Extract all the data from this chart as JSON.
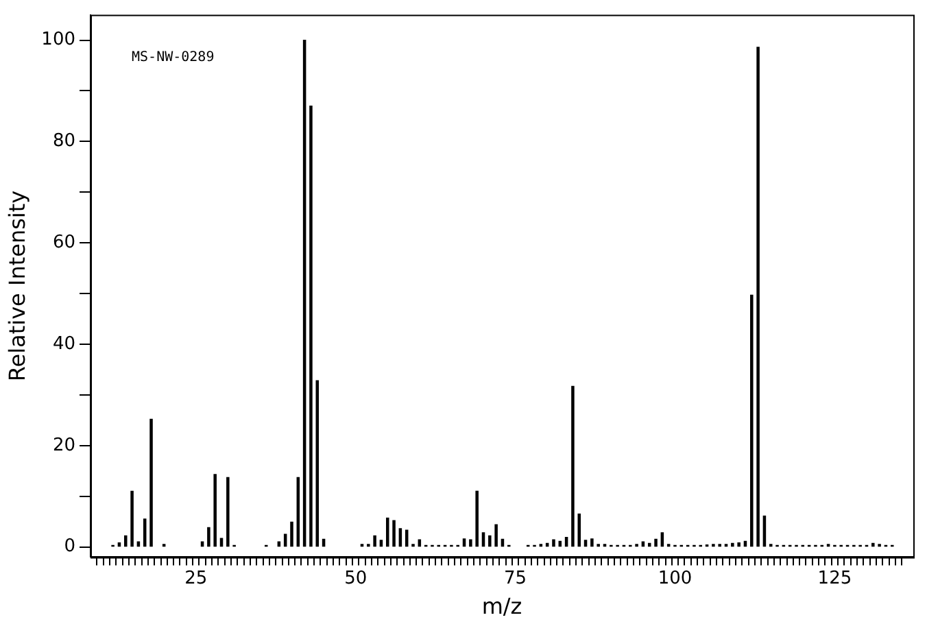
{
  "chart_data": {
    "type": "bar",
    "xlabel": "m/z",
    "ylabel": "Relative Intensity",
    "annotations": [
      "MS-NW-0289"
    ],
    "x": [
      12,
      13,
      14,
      15,
      16,
      17,
      18,
      20,
      26,
      27,
      28,
      29,
      30,
      31,
      36,
      38,
      39,
      40,
      41,
      42,
      43,
      44,
      45,
      51,
      52,
      53,
      54,
      55,
      56,
      57,
      58,
      59,
      60,
      61,
      62,
      63,
      64,
      65,
      66,
      67,
      68,
      69,
      70,
      71,
      72,
      73,
      74,
      77,
      78,
      79,
      80,
      81,
      82,
      83,
      84,
      85,
      86,
      87,
      88,
      89,
      90,
      91,
      92,
      93,
      94,
      95,
      96,
      97,
      98,
      99,
      100,
      101,
      102,
      103,
      104,
      105,
      106,
      107,
      108,
      109,
      110,
      111,
      112,
      113,
      114,
      115,
      116,
      117,
      118,
      119,
      120,
      121,
      122,
      123,
      124,
      125,
      126,
      127,
      128,
      129,
      130,
      131,
      132,
      133,
      134
    ],
    "values": [
      0.3,
      0.8,
      2.2,
      11,
      1,
      5.5,
      25.2,
      0.5,
      1,
      3.8,
      14.3,
      1.7,
      13.7,
      0.3,
      0.3,
      1,
      2.5,
      4.9,
      13.7,
      100,
      87,
      32.8,
      1.5,
      0.5,
      0.5,
      2.2,
      1.3,
      5.7,
      5.2,
      3.6,
      3.3,
      0.5,
      1.4,
      0.3,
      0.3,
      0.3,
      0.3,
      0.3,
      0.3,
      1.6,
      1.4,
      11,
      2.8,
      2.2,
      4.4,
      1.5,
      0.3,
      0.3,
      0.3,
      0.5,
      0.7,
      1.4,
      1.1,
      1.9,
      31.7,
      6.5,
      1.3,
      1.6,
      0.5,
      0.5,
      0.3,
      0.3,
      0.3,
      0.3,
      0.5,
      1,
      0.7,
      1.5,
      2.8,
      0.5,
      0.3,
      0.3,
      0.3,
      0.3,
      0.3,
      0.4,
      0.5,
      0.5,
      0.5,
      0.7,
      0.8,
      1.1,
      49.7,
      98.6,
      6.1,
      0.5,
      0.3,
      0.3,
      0.3,
      0.3,
      0.3,
      0.3,
      0.3,
      0.3,
      0.5,
      0.3,
      0.3,
      0.3,
      0.3,
      0.3,
      0.3,
      0.7,
      0.5,
      0.3,
      0.3
    ],
    "color": "#000000",
    "xlim": [
      8.5,
      137.3
    ],
    "xticks": [
      {
        "value": 10,
        "label": null
      },
      {
        "value": 11,
        "label": null
      },
      {
        "value": 12,
        "label": null
      },
      {
        "value": 13,
        "label": null
      },
      {
        "value": 14,
        "label": null
      },
      {
        "value": 15,
        "label": null
      },
      {
        "value": 16,
        "label": null
      },
      {
        "value": 17,
        "label": null
      },
      {
        "value": 18,
        "label": null
      },
      {
        "value": 19,
        "label": null
      },
      {
        "value": 20,
        "label": null
      },
      {
        "value": 21,
        "label": null
      },
      {
        "value": 22,
        "label": null
      },
      {
        "value": 23,
        "label": null
      },
      {
        "value": 24,
        "label": null
      },
      25,
      {
        "value": 26,
        "label": null
      },
      {
        "value": 27,
        "label": null
      },
      {
        "value": 28,
        "label": null
      },
      {
        "value": 29,
        "label": null
      },
      {
        "value": 30,
        "label": null
      },
      {
        "value": 31,
        "label": null
      },
      {
        "value": 32,
        "label": null
      },
      {
        "value": 33,
        "label": null
      },
      {
        "value": 34,
        "label": null
      },
      {
        "value": 35,
        "label": null
      },
      {
        "value": 36,
        "label": null
      },
      {
        "value": 37,
        "label": null
      },
      {
        "value": 38,
        "label": null
      },
      {
        "value": 39,
        "label": null
      },
      {
        "value": 40,
        "label": null
      },
      {
        "value": 41,
        "label": null
      },
      {
        "value": 42,
        "label": null
      },
      {
        "value": 43,
        "label": null
      },
      {
        "value": 44,
        "label": null
      },
      {
        "value": 45,
        "label": null
      },
      {
        "value": 46,
        "label": null
      },
      {
        "value": 47,
        "label": null
      },
      {
        "value": 48,
        "label": null
      },
      {
        "value": 49,
        "label": null
      },
      50,
      {
        "value": 51,
        "label": null
      },
      {
        "value": 52,
        "label": null
      },
      {
        "value": 53,
        "label": null
      },
      {
        "value": 54,
        "label": null
      },
      {
        "value": 55,
        "label": null
      },
      {
        "value": 56,
        "label": null
      },
      {
        "value": 57,
        "label": null
      },
      {
        "value": 58,
        "label": null
      },
      {
        "value": 59,
        "label": null
      },
      {
        "value": 60,
        "label": null
      },
      {
        "value": 61,
        "label": null
      },
      {
        "value": 62,
        "label": null
      },
      {
        "value": 63,
        "label": null
      },
      {
        "value": 64,
        "label": null
      },
      {
        "value": 65,
        "label": null
      },
      {
        "value": 66,
        "label": null
      },
      {
        "value": 67,
        "label": null
      },
      {
        "value": 68,
        "label": null
      },
      {
        "value": 69,
        "label": null
      },
      {
        "value": 70,
        "label": null
      },
      {
        "value": 71,
        "label": null
      },
      {
        "value": 72,
        "label": null
      },
      {
        "value": 73,
        "label": null
      },
      {
        "value": 74,
        "label": null
      },
      75,
      {
        "value": 76,
        "label": null
      },
      {
        "value": 77,
        "label": null
      },
      {
        "value": 78,
        "label": null
      },
      {
        "value": 79,
        "label": null
      },
      {
        "value": 80,
        "label": null
      },
      {
        "value": 81,
        "label": null
      },
      {
        "value": 82,
        "label": null
      },
      {
        "value": 83,
        "label": null
      },
      {
        "value": 84,
        "label": null
      },
      {
        "value": 85,
        "label": null
      },
      {
        "value": 86,
        "label": null
      },
      {
        "value": 87,
        "label": null
      },
      {
        "value": 88,
        "label": null
      },
      {
        "value": 89,
        "label": null
      },
      {
        "value": 90,
        "label": null
      },
      {
        "value": 91,
        "label": null
      },
      {
        "value": 92,
        "label": null
      },
      {
        "value": 93,
        "label": null
      },
      {
        "value": 94,
        "label": null
      },
      {
        "value": 95,
        "label": null
      },
      {
        "value": 96,
        "label": null
      },
      {
        "value": 97,
        "label": null
      },
      {
        "value": 98,
        "label": null
      },
      {
        "value": 99,
        "label": null
      },
      100,
      {
        "value": 101,
        "label": null
      },
      {
        "value": 102,
        "label": null
      },
      {
        "value": 103,
        "label": null
      },
      {
        "value": 104,
        "label": null
      },
      {
        "value": 105,
        "label": null
      },
      {
        "value": 106,
        "label": null
      },
      {
        "value": 107,
        "label": null
      },
      {
        "value": 108,
        "label": null
      },
      {
        "value": 109,
        "label": null
      },
      {
        "value": 110,
        "label": null
      },
      {
        "value": 111,
        "label": null
      },
      {
        "value": 112,
        "label": null
      },
      {
        "value": 113,
        "label": null
      },
      {
        "value": 114,
        "label": null
      },
      {
        "value": 115,
        "label": null
      },
      {
        "value": 116,
        "label": null
      },
      {
        "value": 117,
        "label": null
      },
      {
        "value": 118,
        "label": null
      },
      {
        "value": 119,
        "label": null
      },
      {
        "value": 120,
        "label": null
      },
      {
        "value": 121,
        "label": null
      },
      {
        "value": 122,
        "label": null
      },
      {
        "value": 123,
        "label": null
      },
      {
        "value": 124,
        "label": null
      },
      125,
      {
        "value": 126,
        "label": null
      },
      {
        "value": 127,
        "label": null
      },
      {
        "value": 128,
        "label": null
      },
      {
        "value": 129,
        "label": null
      },
      {
        "value": 130,
        "label": null
      },
      {
        "value": 131,
        "label": null
      },
      {
        "value": 132,
        "label": null
      },
      {
        "value": 133,
        "label": null
      },
      {
        "value": 134,
        "label": null
      },
      {
        "value": 135,
        "label": null
      }
    ],
    "ylim": [
      -2,
      105
    ],
    "yticks": [
      0,
      {
        "value": 10,
        "label": null
      },
      20,
      {
        "value": 30,
        "label": null
      },
      40,
      {
        "value": 50,
        "label": null
      },
      60,
      {
        "value": 70,
        "label": null
      },
      80,
      {
        "value": 90,
        "label": null
      },
      100
    ],
    "grid": false,
    "legend": false
  }
}
